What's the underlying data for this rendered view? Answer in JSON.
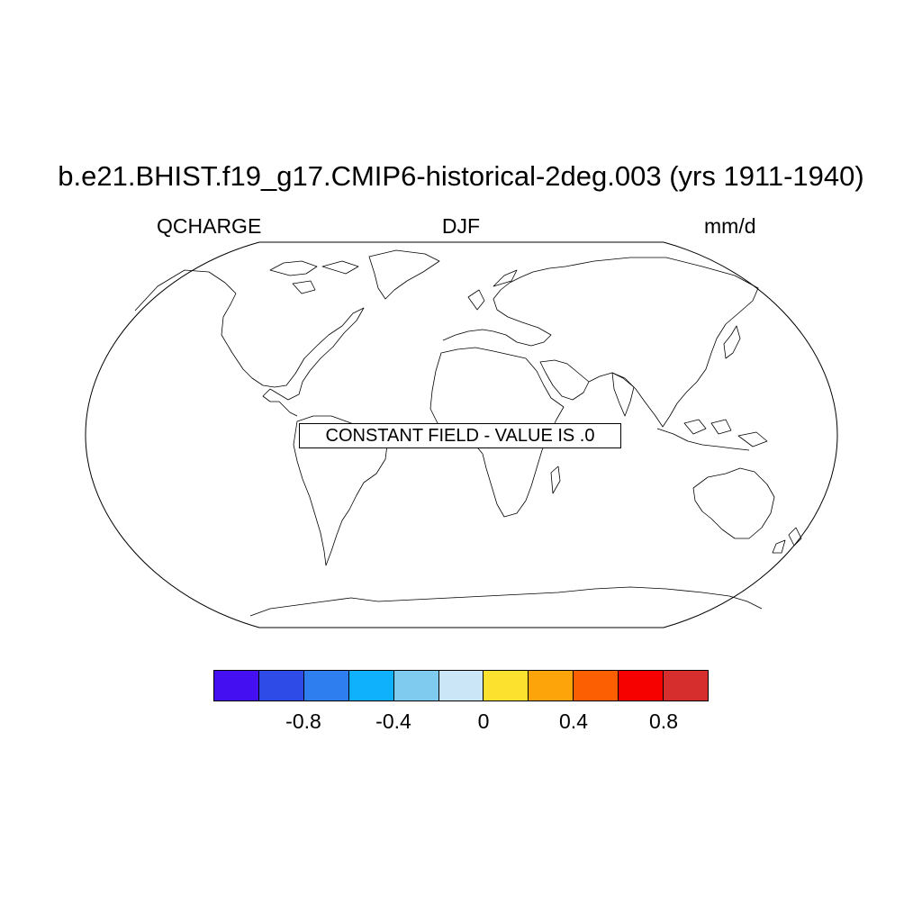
{
  "title": "b.e21.BHIST.f19_g17.CMIP6-historical-2deg.003 (yrs 1911-1940)",
  "left_label": "QCHARGE",
  "center_label": "DJF",
  "right_label": "mm/d",
  "notice": "CONSTANT FIELD - VALUE IS .0",
  "map": {
    "projection": "robinson",
    "coastlines": true,
    "fill_value": 0
  },
  "colorbar": {
    "colors": [
      "#4410f2",
      "#2e4be8",
      "#2f7ef0",
      "#0fb0fc",
      "#7fcbef",
      "#cbe7f7",
      "#fde12f",
      "#fca40a",
      "#fc5e02",
      "#f70000",
      "#d62d2d"
    ],
    "tick_labels": [
      "-0.8",
      "-0.4",
      "0",
      "0.4",
      "0.8"
    ],
    "tick_values": [
      -0.8,
      -0.4,
      0,
      0.4,
      0.8
    ],
    "levels": [
      -1,
      -0.8,
      -0.6,
      -0.4,
      -0.2,
      0,
      0.2,
      0.4,
      0.6,
      0.8
    ]
  }
}
